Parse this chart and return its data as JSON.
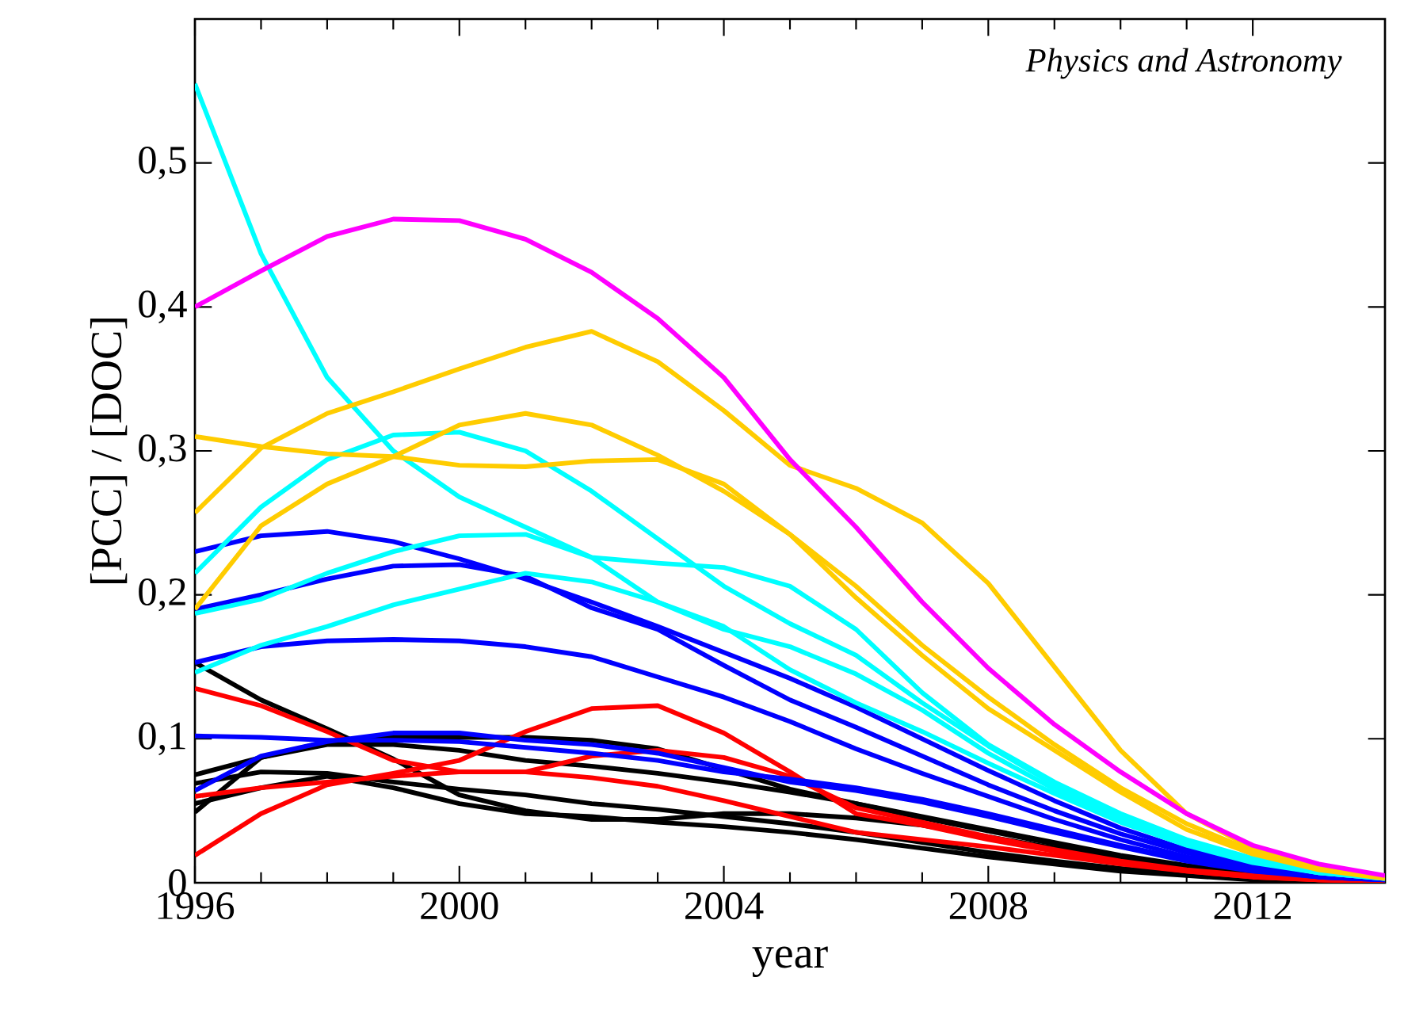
{
  "chart_data": {
    "type": "line",
    "xlabel": "year",
    "ylabel": "[PCC] / [DOC]",
    "annotations": [
      "Physics and Astronomy"
    ],
    "x": [
      1996,
      1997,
      1998,
      1999,
      2000,
      2001,
      2002,
      2003,
      2004,
      2005,
      2006,
      2007,
      2008,
      2009,
      2010,
      2011,
      2012,
      2013,
      2014
    ],
    "xlim": [
      1996,
      2014
    ],
    "xticks": [
      1996,
      2000,
      2004,
      2008,
      2012
    ],
    "ylim": [
      0,
      0.6
    ],
    "yticks": [
      0,
      {
        "value": 0.1,
        "label": "0,1"
      },
      {
        "value": 0.2,
        "label": "0,2"
      },
      {
        "value": 0.3,
        "label": "0,3"
      },
      {
        "value": 0.4,
        "label": "0,4"
      },
      {
        "value": 0.5,
        "label": "0,5"
      }
    ],
    "grid": false,
    "marker": "none",
    "line_style": "solid",
    "series": [
      {
        "color": "#000000",
        "values": [
          0.153,
          0.127,
          0.107,
          0.086,
          0.061,
          0.05,
          0.044,
          0.044,
          0.048,
          0.048,
          0.045,
          0.04,
          0.032,
          0.024,
          0.016,
          0.01,
          0.005,
          0.002,
          0.001
        ]
      },
      {
        "color": "#000000",
        "values": [
          0.075,
          0.087,
          0.098,
          0.101,
          0.101,
          0.101,
          0.099,
          0.093,
          0.079,
          0.065,
          0.055,
          0.045,
          0.036,
          0.027,
          0.018,
          0.011,
          0.006,
          0.003,
          0.001
        ]
      },
      {
        "color": "#000000",
        "values": [
          0.049,
          0.087,
          0.096,
          0.096,
          0.092,
          0.085,
          0.081,
          0.076,
          0.07,
          0.063,
          0.055,
          0.046,
          0.037,
          0.028,
          0.019,
          0.012,
          0.006,
          0.003,
          0.001
        ]
      },
      {
        "color": "#000000",
        "values": [
          0.069,
          0.077,
          0.076,
          0.07,
          0.065,
          0.061,
          0.055,
          0.051,
          0.046,
          0.041,
          0.035,
          0.028,
          0.021,
          0.015,
          0.01,
          0.006,
          0.003,
          0.001,
          0.0
        ]
      },
      {
        "color": "#000000",
        "values": [
          0.055,
          0.066,
          0.074,
          0.066,
          0.055,
          0.048,
          0.046,
          0.042,
          0.039,
          0.035,
          0.03,
          0.024,
          0.018,
          0.013,
          0.008,
          0.005,
          0.002,
          0.001,
          0.0
        ]
      },
      {
        "color": "#ff0000",
        "values": [
          0.135,
          0.123,
          0.105,
          0.085,
          0.077,
          0.077,
          0.088,
          0.092,
          0.087,
          0.074,
          0.052,
          0.042,
          0.032,
          0.023,
          0.015,
          0.009,
          0.005,
          0.002,
          0.001
        ]
      },
      {
        "color": "#ff0000",
        "values": [
          0.06,
          0.066,
          0.07,
          0.074,
          0.077,
          0.077,
          0.073,
          0.067,
          0.057,
          0.046,
          0.035,
          0.03,
          0.025,
          0.019,
          0.013,
          0.008,
          0.004,
          0.002,
          0.001
        ]
      },
      {
        "color": "#ff0000",
        "values": [
          0.019,
          0.048,
          0.068,
          0.076,
          0.085,
          0.105,
          0.121,
          0.123,
          0.104,
          0.077,
          0.048,
          0.04,
          0.03,
          0.022,
          0.014,
          0.008,
          0.004,
          0.002,
          0.001
        ]
      },
      {
        "color": "#0000ff",
        "values": [
          0.23,
          0.241,
          0.244,
          0.237,
          0.225,
          0.211,
          0.195,
          0.178,
          0.16,
          0.142,
          0.122,
          0.1,
          0.078,
          0.057,
          0.038,
          0.023,
          0.012,
          0.005,
          0.002
        ]
      },
      {
        "color": "#0000ff",
        "values": [
          0.19,
          0.2,
          0.211,
          0.22,
          0.221,
          0.213,
          0.191,
          0.176,
          0.151,
          0.127,
          0.108,
          0.088,
          0.068,
          0.05,
          0.034,
          0.021,
          0.011,
          0.005,
          0.002
        ]
      },
      {
        "color": "#0000ff",
        "values": [
          0.153,
          0.164,
          0.168,
          0.169,
          0.168,
          0.164,
          0.157,
          0.143,
          0.129,
          0.112,
          0.093,
          0.076,
          0.06,
          0.044,
          0.03,
          0.018,
          0.01,
          0.004,
          0.002
        ]
      },
      {
        "color": "#0000ff",
        "values": [
          0.102,
          0.101,
          0.099,
          0.099,
          0.098,
          0.094,
          0.09,
          0.085,
          0.077,
          0.072,
          0.066,
          0.058,
          0.048,
          0.037,
          0.026,
          0.016,
          0.009,
          0.004,
          0.002
        ]
      },
      {
        "color": "#0000ff",
        "values": [
          0.064,
          0.088,
          0.098,
          0.104,
          0.104,
          0.099,
          0.096,
          0.09,
          0.08,
          0.07,
          0.064,
          0.056,
          0.046,
          0.035,
          0.025,
          0.015,
          0.008,
          0.004,
          0.002
        ]
      },
      {
        "color": "#00ffff",
        "values": [
          0.555,
          0.437,
          0.351,
          0.3,
          0.268,
          0.247,
          0.226,
          0.222,
          0.219,
          0.206,
          0.176,
          0.132,
          0.096,
          0.07,
          0.048,
          0.03,
          0.017,
          0.008,
          0.004
        ]
      },
      {
        "color": "#00ffff",
        "values": [
          0.215,
          0.261,
          0.294,
          0.311,
          0.313,
          0.3,
          0.272,
          0.239,
          0.206,
          0.18,
          0.158,
          0.125,
          0.095,
          0.068,
          0.045,
          0.028,
          0.015,
          0.007,
          0.003
        ]
      },
      {
        "color": "#00ffff",
        "values": [
          0.187,
          0.197,
          0.215,
          0.23,
          0.241,
          0.242,
          0.226,
          0.195,
          0.176,
          0.164,
          0.145,
          0.12,
          0.09,
          0.065,
          0.043,
          0.027,
          0.015,
          0.007,
          0.003
        ]
      },
      {
        "color": "#00ffff",
        "values": [
          0.146,
          0.165,
          0.178,
          0.193,
          0.204,
          0.215,
          0.209,
          0.195,
          0.178,
          0.148,
          0.125,
          0.105,
          0.083,
          0.062,
          0.042,
          0.026,
          0.014,
          0.007,
          0.003
        ]
      },
      {
        "color": "#ffcc00",
        "values": [
          0.31,
          0.303,
          0.298,
          0.296,
          0.29,
          0.289,
          0.293,
          0.294,
          0.277,
          0.242,
          0.198,
          0.158,
          0.121,
          0.092,
          0.063,
          0.037,
          0.02,
          0.009,
          0.003
        ]
      },
      {
        "color": "#ffcc00",
        "values": [
          0.19,
          0.248,
          0.277,
          0.296,
          0.318,
          0.326,
          0.318,
          0.297,
          0.272,
          0.242,
          0.206,
          0.165,
          0.129,
          0.096,
          0.066,
          0.041,
          0.022,
          0.011,
          0.004
        ]
      },
      {
        "color": "#ffcc00",
        "values": [
          0.257,
          0.302,
          0.326,
          0.341,
          0.357,
          0.372,
          0.383,
          0.362,
          0.328,
          0.29,
          0.274,
          0.25,
          0.208,
          0.15,
          0.092,
          0.048,
          0.024,
          0.011,
          0.004
        ]
      },
      {
        "color": "#ff00ff",
        "values": [
          0.4,
          0.425,
          0.449,
          0.461,
          0.46,
          0.447,
          0.424,
          0.392,
          0.351,
          0.294,
          0.247,
          0.195,
          0.149,
          0.11,
          0.077,
          0.048,
          0.026,
          0.013,
          0.005
        ]
      }
    ]
  }
}
